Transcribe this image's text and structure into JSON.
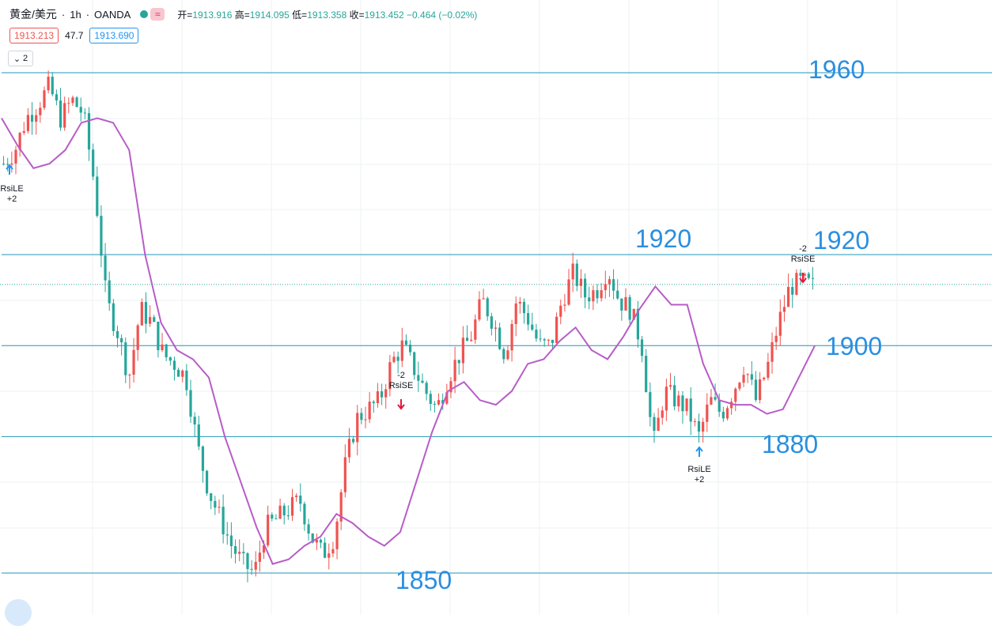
{
  "header": {
    "symbol": "黄金/美元",
    "interval": "1h",
    "source": "OANDA",
    "open_label": "开",
    "open": "1913.916",
    "high_label": "高",
    "high": "1914.095",
    "low_label": "低",
    "low": "1913.358",
    "close_label": "收",
    "close": "1913.452",
    "change": "−0.464 (−0.02%)",
    "bid": "1913.213",
    "spread": "47.7",
    "ask": "1913.690",
    "indicator_count": "2",
    "wave_icon": "wave-icon",
    "status_dot_color": "#26a69a"
  },
  "levels": [
    {
      "text": "1960",
      "price": 1960
    },
    {
      "text": "1920",
      "price": 1920
    },
    {
      "text": "1920",
      "price": 1920
    },
    {
      "text": "1900",
      "price": 1900
    },
    {
      "text": "1880",
      "price": 1880
    },
    {
      "text": "1850",
      "price": 1850
    }
  ],
  "signals": [
    {
      "line1": "RsiLE",
      "line2": "+2",
      "direction": "up"
    },
    {
      "line1": "-2",
      "line2": "RsiSE",
      "direction": "down"
    },
    {
      "line1": "RsiLE",
      "line2": "+2",
      "direction": "up"
    },
    {
      "line1": "-2",
      "line2": "RsiSE",
      "direction": "down"
    }
  ],
  "colors": {
    "up": "#ef5350",
    "down": "#26a69a",
    "ma": "#b85cc7",
    "level_line": "#2196b8",
    "level_text": "#2b8fe0",
    "grid": "#eef0f3",
    "signal_up": "#2196f3",
    "signal_down": "#e5173d"
  },
  "chart_data": {
    "type": "candlestick",
    "symbol": "黄金/美元",
    "interval": "1h",
    "current_price": 1913.452,
    "horizontal_levels": [
      1960,
      1920,
      1900,
      1880,
      1850
    ],
    "price_path_close": [
      1940,
      1943,
      1950,
      1953,
      1957,
      1950,
      1954,
      1951,
      1935,
      1910,
      1903,
      1893,
      1908,
      1905,
      1898,
      1896,
      1893,
      1878,
      1868,
      1862,
      1856,
      1852,
      1850,
      1860,
      1862,
      1864,
      1866,
      1858,
      1854,
      1858,
      1874,
      1884,
      1886,
      1888,
      1896,
      1900,
      1895,
      1890,
      1886,
      1893,
      1898,
      1902,
      1910,
      1905,
      1898,
      1910,
      1906,
      1900,
      1900,
      1910,
      1916,
      1911,
      1912,
      1917,
      1910,
      1908,
      1900,
      1878,
      1890,
      1888,
      1886,
      1880,
      1888,
      1885,
      1890,
      1896,
      1888,
      1895,
      1905,
      1913,
      1914,
      1913
    ],
    "moving_average": [
      1950,
      1944,
      1939,
      1940,
      1943,
      1949,
      1950,
      1949,
      1943,
      1920,
      1905,
      1899,
      1897,
      1893,
      1880,
      1870,
      1860,
      1852,
      1853,
      1856,
      1858,
      1863,
      1861,
      1858,
      1856,
      1859,
      1870,
      1881,
      1890,
      1892,
      1888,
      1887,
      1890,
      1896,
      1897,
      1901,
      1904,
      1899,
      1897,
      1902,
      1908,
      1913,
      1909,
      1909,
      1896,
      1888,
      1887,
      1887,
      1885,
      1886,
      1893,
      1900
    ],
    "signals": [
      {
        "label": "RsiLE",
        "qty": "+2",
        "type": "long_entry"
      },
      {
        "label": "RsiSE",
        "qty": "-2",
        "type": "short_entry"
      },
      {
        "label": "RsiLE",
        "qty": "+2",
        "type": "long_entry"
      },
      {
        "label": "RsiSE",
        "qty": "-2",
        "type": "short_entry"
      }
    ]
  }
}
